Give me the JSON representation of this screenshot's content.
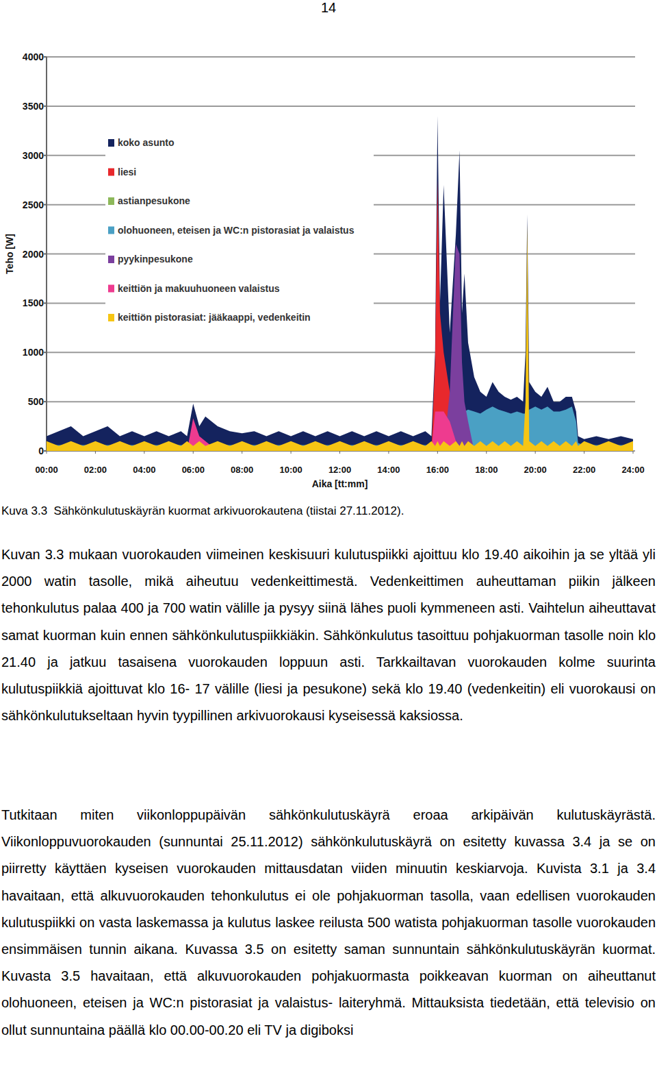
{
  "page_number": "14",
  "chart_data": {
    "type": "area",
    "stacked": false,
    "grid": true,
    "legend": "upper left",
    "x_label": "Aika [tt:mm]",
    "y_label": "Teho [W]",
    "xlim": [
      0,
      24
    ],
    "ylim": [
      0,
      4000
    ],
    "xticks": [
      {
        "value": 0,
        "label": "00:00"
      },
      {
        "value": 2,
        "label": "02:00"
      },
      {
        "value": 4,
        "label": "04:00"
      },
      {
        "value": 6,
        "label": "06:00"
      },
      {
        "value": 8,
        "label": "08:00"
      },
      {
        "value": 10,
        "label": "10:00"
      },
      {
        "value": 12,
        "label": "12:00"
      },
      {
        "value": 14,
        "label": "14:00"
      },
      {
        "value": 16,
        "label": "16:00"
      },
      {
        "value": 18,
        "label": "18:00"
      },
      {
        "value": 20,
        "label": "20:00"
      },
      {
        "value": 22,
        "label": "22:00"
      },
      {
        "value": 24,
        "label": "24:00"
      }
    ],
    "yticks": [
      0,
      500,
      1000,
      1500,
      2000,
      2500,
      3000,
      3500,
      4000
    ],
    "x": [
      0,
      0.5,
      1,
      1.5,
      2,
      2.5,
      3,
      3.5,
      4,
      4.5,
      5,
      5.5,
      5.75,
      6,
      6.25,
      6.5,
      7,
      7.5,
      8,
      8.5,
      9,
      9.5,
      10,
      10.5,
      11,
      11.5,
      12,
      12.5,
      13,
      13.5,
      14,
      14.5,
      15,
      15.5,
      15.75,
      15.9,
      16,
      16.1,
      16.25,
      16.5,
      16.75,
      16.9,
      17,
      17.1,
      17.25,
      17.5,
      17.75,
      18,
      18.25,
      18.5,
      18.75,
      19,
      19.25,
      19.5,
      19.6,
      19.67,
      19.75,
      20,
      20.25,
      20.5,
      20.75,
      21,
      21.25,
      21.5,
      21.67,
      21.75,
      22,
      22.5,
      23,
      23.5,
      24
    ],
    "series": [
      {
        "name": "koko asunto",
        "color": "#14235e",
        "values": [
          150,
          200,
          250,
          150,
          200,
          250,
          150,
          200,
          150,
          200,
          150,
          200,
          150,
          480,
          250,
          350,
          250,
          200,
          180,
          200,
          150,
          200,
          150,
          200,
          150,
          200,
          150,
          200,
          150,
          200,
          150,
          200,
          150,
          200,
          150,
          1000,
          3400,
          1500,
          2700,
          1200,
          2200,
          3050,
          1400,
          1800,
          1100,
          750,
          600,
          550,
          700,
          600,
          550,
          520,
          550,
          500,
          1000,
          2400,
          700,
          600,
          550,
          650,
          500,
          500,
          550,
          550,
          400,
          150,
          120,
          150,
          120,
          150,
          120
        ]
      },
      {
        "name": "liesi",
        "color": "#e8282c",
        "values": [
          0,
          0,
          0,
          0,
          0,
          0,
          0,
          0,
          0,
          0,
          0,
          0,
          0,
          0,
          0,
          0,
          0,
          0,
          0,
          0,
          0,
          0,
          0,
          0,
          0,
          0,
          0,
          0,
          0,
          0,
          0,
          0,
          0,
          0,
          0,
          900,
          2750,
          1400,
          1000,
          600,
          0,
          0,
          0,
          0,
          0,
          0,
          0,
          0,
          0,
          0,
          0,
          0,
          0,
          0,
          0,
          0,
          0,
          0,
          0,
          0,
          0,
          0,
          0,
          0,
          0,
          0,
          0,
          0,
          0,
          0,
          0
        ]
      },
      {
        "name": "astianpesukone",
        "color": "#8db85a",
        "values": [
          0,
          0,
          0,
          0,
          0,
          0,
          0,
          0,
          0,
          0,
          0,
          0,
          0,
          0,
          0,
          0,
          0,
          0,
          0,
          0,
          0,
          0,
          0,
          0,
          0,
          0,
          0,
          0,
          0,
          0,
          0,
          0,
          0,
          0,
          0,
          0,
          0,
          0,
          0,
          100,
          0,
          0,
          0,
          0,
          0,
          0,
          0,
          0,
          0,
          0,
          0,
          0,
          0,
          0,
          0,
          0,
          0,
          0,
          0,
          0,
          0,
          0,
          0,
          0,
          0,
          0,
          0,
          0,
          0,
          0,
          0
        ]
      },
      {
        "name": "olohuoneen, eteisen ja WC:n pistorasiat ja valaistus",
        "color": "#4aa0c4",
        "values": [
          60,
          60,
          60,
          60,
          60,
          60,
          60,
          60,
          60,
          60,
          60,
          60,
          60,
          60,
          60,
          60,
          60,
          60,
          60,
          60,
          60,
          60,
          60,
          60,
          60,
          60,
          60,
          60,
          60,
          60,
          60,
          60,
          60,
          60,
          60,
          60,
          60,
          60,
          60,
          60,
          60,
          100,
          350,
          400,
          420,
          400,
          380,
          420,
          450,
          420,
          400,
          380,
          400,
          380,
          380,
          400,
          420,
          450,
          420,
          450,
          400,
          400,
          420,
          450,
          300,
          80,
          60,
          60,
          60,
          60,
          60
        ]
      },
      {
        "name": "pyykinpesukone",
        "color": "#7b3f9e",
        "values": [
          0,
          0,
          0,
          0,
          0,
          0,
          0,
          0,
          0,
          0,
          0,
          0,
          0,
          0,
          0,
          0,
          0,
          0,
          0,
          0,
          0,
          0,
          0,
          0,
          0,
          0,
          0,
          0,
          0,
          0,
          0,
          0,
          0,
          0,
          0,
          0,
          0,
          0,
          0,
          600,
          2100,
          2000,
          900,
          500,
          300,
          0,
          0,
          0,
          0,
          0,
          0,
          0,
          0,
          0,
          0,
          0,
          0,
          0,
          0,
          0,
          0,
          0,
          0,
          0,
          0,
          0,
          0,
          0,
          0,
          0,
          0
        ]
      },
      {
        "name": "keittiön ja makuuhuoneen valaistus",
        "color": "#ee3b8f",
        "values": [
          0,
          0,
          0,
          0,
          0,
          0,
          0,
          0,
          0,
          0,
          0,
          0,
          0,
          330,
          150,
          100,
          0,
          0,
          0,
          0,
          0,
          0,
          0,
          0,
          0,
          0,
          0,
          0,
          0,
          0,
          0,
          0,
          0,
          0,
          0,
          400,
          400,
          400,
          400,
          300,
          100,
          0,
          0,
          0,
          0,
          0,
          0,
          0,
          0,
          0,
          0,
          0,
          0,
          0,
          0,
          0,
          0,
          0,
          0,
          0,
          0,
          0,
          0,
          0,
          0,
          0,
          0,
          0,
          0,
          0,
          0
        ]
      },
      {
        "name": "keittiön pistorasiat: jääkaappi, vedenkeitin",
        "color": "#f6c514",
        "values": [
          100,
          50,
          100,
          50,
          100,
          50,
          100,
          50,
          100,
          50,
          100,
          50,
          100,
          50,
          100,
          50,
          100,
          50,
          100,
          50,
          100,
          50,
          100,
          50,
          100,
          50,
          100,
          50,
          100,
          50,
          100,
          50,
          100,
          50,
          100,
          50,
          100,
          50,
          100,
          50,
          100,
          50,
          100,
          50,
          100,
          50,
          100,
          50,
          100,
          50,
          100,
          50,
          100,
          50,
          500,
          2300,
          100,
          50,
          100,
          50,
          100,
          50,
          100,
          50,
          100,
          50,
          100,
          50,
          100,
          50,
          100
        ]
      }
    ]
  },
  "caption": "Kuva 3.3  Sähkönkulutuskäyrän kuormat arkivuorokautena (tiistai 27.11.2012).",
  "paragraphs": [
    "Kuvan 3.3 mukaan vuorokauden viimeinen keskisuuri kulutuspiikki ajoittuu klo 19.40 aikoihin ja se yltää yli 2000 watin tasolle, mikä aiheutuu vedenkeittimestä. Vedenkeittimen auheuttaman piikin jälkeen tehonkulutus palaa 400 ja 700 watin välille ja pysyy siinä lähes puoli kymmeneen asti. Vaihtelun aiheuttavat samat kuorman kuin ennen sähkönkulutuspiikkiäkin. Sähkönkulutus tasoittuu pohjakuorman tasolle noin klo 21.40 ja jatkuu tasaisena vuorokauden loppuun asti. Tarkkailtavan vuorokauden kolme suurinta kulutuspiikkiä ajoittuvat klo 16- 17 välille (liesi ja pesukone) sekä klo 19.40 (vedenkeitin) eli vuorokausi on sähkönkulutukseltaan hyvin tyypillinen arkivuorokausi kyseisessä kaksiossa.",
    "Tutkitaan miten viikonloppupäivän sähkönkulutuskäyrä eroaa arkipäivän kulutuskäyrästä. Viikonloppuvuorokauden (sunnuntai 25.11.2012) sähkönkulutuskäyrä on esitetty kuvassa 3.4 ja se on piirretty käyttäen kyseisen vuorokauden mittausdatan viiden minuutin keskiarvoja. Kuvista 3.1 ja 3.4 havaitaan, että alkuvuorokauden tehonkulutus ei ole pohjakuorman tasolla, vaan edellisen vuorokauden kulutuspiikki on vasta laskemassa ja kulutus laskee reilusta 500 watista pohjakuorman tasolle vuorokauden ensimmäisen tunnin aikana. Kuvassa 3.5 on esitetty saman sunnuntain sähkönkulutuskäyrän kuormat. Kuvasta 3.5 havaitaan, että alkuvuorokauden pohjakuormasta poikkeavan kuorman on aiheuttanut olohuoneen, eteisen ja WC:n pistorasiat ja valaistus- laiteryhmä. Mittauksista tiedetään, että televisio on ollut sunnuntaina päällä klo 00.00-00.20 eli TV ja digiboksi"
  ]
}
